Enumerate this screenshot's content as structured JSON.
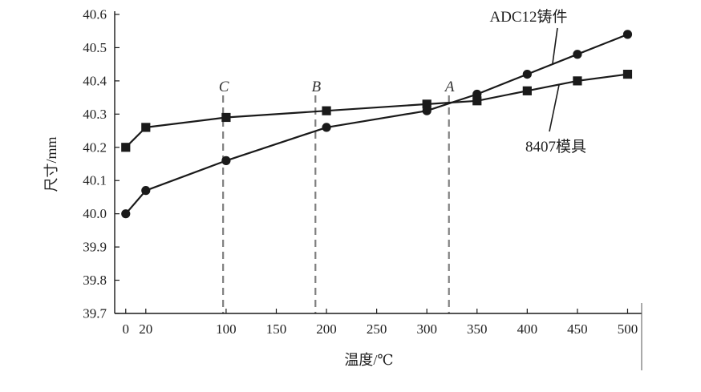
{
  "chart_data": {
    "type": "line",
    "xlabel": "温度/℃",
    "ylabel": "尺寸/mm",
    "xlim": [
      -11,
      514
    ],
    "ylim": [
      39.7,
      40.6
    ],
    "xticks": [
      0,
      20,
      100,
      150,
      200,
      250,
      300,
      350,
      400,
      450,
      500
    ],
    "yticks": [
      39.7,
      39.8,
      39.9,
      40.0,
      40.1,
      40.2,
      40.3,
      40.4,
      40.5,
      40.6
    ],
    "grid": false,
    "line_color": "#1a1a1a",
    "series": [
      {
        "name": "ADC12铸件",
        "marker": "circle",
        "x": [
          0,
          20,
          100,
          200,
          300,
          350,
          400,
          450,
          500
        ],
        "y": [
          40.0,
          40.07,
          40.16,
          40.26,
          40.31,
          40.36,
          40.42,
          40.48,
          40.54
        ]
      },
      {
        "name": "8407模具",
        "marker": "square",
        "x": [
          0,
          20,
          100,
          200,
          300,
          350,
          400,
          450,
          500
        ],
        "y": [
          40.2,
          40.26,
          40.29,
          40.31,
          40.33,
          40.34,
          40.37,
          40.4,
          40.42
        ]
      }
    ],
    "reference_lines": [
      {
        "label": "C",
        "x": 97
      },
      {
        "label": "B",
        "x": 189
      },
      {
        "label": "A",
        "x": 322
      }
    ],
    "reference_line_color": "#7f7f7f"
  }
}
